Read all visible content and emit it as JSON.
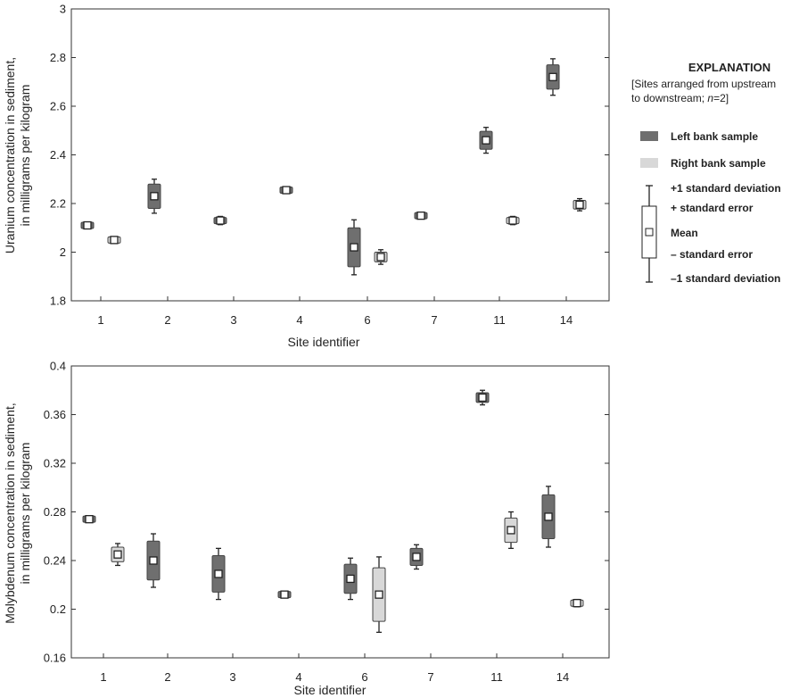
{
  "colors": {
    "left_bank": "#6f6f6f",
    "right_bank": "#d8d8d8",
    "axis": "#333333"
  },
  "chart_data": [
    {
      "type": "box",
      "title": "",
      "xlabel": "Site identifier",
      "ylabel_line1": "Uranium concentration in sediment,",
      "ylabel_line2": "in milligrams per kilogram",
      "categories": [
        "1",
        "2",
        "3",
        "4",
        "6",
        "7",
        "11",
        "14"
      ],
      "ylim": [
        1.8,
        3.0
      ],
      "yticks": [
        "1.8",
        "2",
        "2.2",
        "2.4",
        "2.6",
        "2.8",
        "3"
      ],
      "series": [
        {
          "name": "Left bank sample",
          "boxes": [
            {
              "site": "1",
              "mean": 2.11,
              "se": 0.005,
              "sd": 0.007
            },
            {
              "site": "2",
              "mean": 2.23,
              "se": 0.05,
              "sd": 0.07
            },
            {
              "site": "3",
              "mean": 2.13,
              "se": 0.012,
              "sd": 0.017
            },
            {
              "site": "4",
              "mean": 2.255,
              "se": 0.008,
              "sd": 0.012
            },
            {
              "site": "6",
              "mean": 2.02,
              "se": 0.08,
              "sd": 0.113
            },
            {
              "site": "7",
              "mean": 2.15,
              "se": 0.005,
              "sd": 0.008
            },
            {
              "site": "11",
              "mean": 2.46,
              "se": 0.037,
              "sd": 0.053
            },
            {
              "site": "14",
              "mean": 2.72,
              "se": 0.05,
              "sd": 0.075
            }
          ]
        },
        {
          "name": "Right bank sample",
          "boxes": [
            {
              "site": "1",
              "mean": 2.05,
              "se": 0.006,
              "sd": 0.009
            },
            {
              "site": "2",
              "mean": null
            },
            {
              "site": "3",
              "mean": null
            },
            {
              "site": "4",
              "mean": null
            },
            {
              "site": "6",
              "mean": 1.98,
              "se": 0.02,
              "sd": 0.03
            },
            {
              "site": "7",
              "mean": null
            },
            {
              "site": "11",
              "mean": 2.13,
              "se": 0.012,
              "sd": 0.017
            },
            {
              "site": "14",
              "mean": 2.195,
              "se": 0.018,
              "sd": 0.025
            }
          ]
        }
      ]
    },
    {
      "type": "box",
      "title": "",
      "xlabel": "Site identifier",
      "ylabel_line1": "Molybdenum concentration in sediment,",
      "ylabel_line2": "in milligrams per kilogram",
      "categories": [
        "1",
        "2",
        "3",
        "4",
        "6",
        "7",
        "11",
        "14"
      ],
      "ylim": [
        0.16,
        0.4
      ],
      "yticks": [
        "0.16",
        "0.2",
        "0.24",
        "0.28",
        "0.32",
        "0.36",
        "0.4"
      ],
      "series": [
        {
          "name": "Left bank sample",
          "boxes": [
            {
              "site": "1",
              "mean": 0.274,
              "se": 0.0015,
              "sd": 0.002
            },
            {
              "site": "2",
              "mean": 0.24,
              "se": 0.016,
              "sd": 0.022
            },
            {
              "site": "3",
              "mean": 0.229,
              "se": 0.015,
              "sd": 0.021
            },
            {
              "site": "4",
              "mean": 0.212,
              "se": 0.001,
              "sd": 0.0015
            },
            {
              "site": "6",
              "mean": 0.225,
              "se": 0.012,
              "sd": 0.017
            },
            {
              "site": "7",
              "mean": 0.243,
              "se": 0.007,
              "sd": 0.01
            },
            {
              "site": "11",
              "mean": 0.374,
              "se": 0.004,
              "sd": 0.006
            },
            {
              "site": "14",
              "mean": 0.276,
              "se": 0.018,
              "sd": 0.025
            }
          ]
        },
        {
          "name": "Right bank sample",
          "boxes": [
            {
              "site": "1",
              "mean": 0.245,
              "se": 0.006,
              "sd": 0.009
            },
            {
              "site": "2",
              "mean": null
            },
            {
              "site": "3",
              "mean": null
            },
            {
              "site": "4",
              "mean": null
            },
            {
              "site": "6",
              "mean": 0.212,
              "se": 0.022,
              "sd": 0.031
            },
            {
              "site": "7",
              "mean": null
            },
            {
              "site": "11",
              "mean": 0.265,
              "se": 0.01,
              "sd": 0.015
            },
            {
              "site": "14",
              "mean": 0.205,
              "se": 0.002,
              "sd": 0.003
            }
          ]
        }
      ]
    }
  ],
  "legend": {
    "title": "EXPLANATION",
    "note_line1": "[Sites arranged from upstream",
    "note_line2_a": "to downstream; ",
    "note_line2_b": "n",
    "note_line2_c": "=2]",
    "left_label": "Left bank sample",
    "right_label": "Right bank sample",
    "plus_sd": "+1 standard deviation",
    "plus_se": "+ standard error",
    "mean": "Mean",
    "minus_se": "– standard error",
    "minus_sd": "–1 standard deviation"
  }
}
